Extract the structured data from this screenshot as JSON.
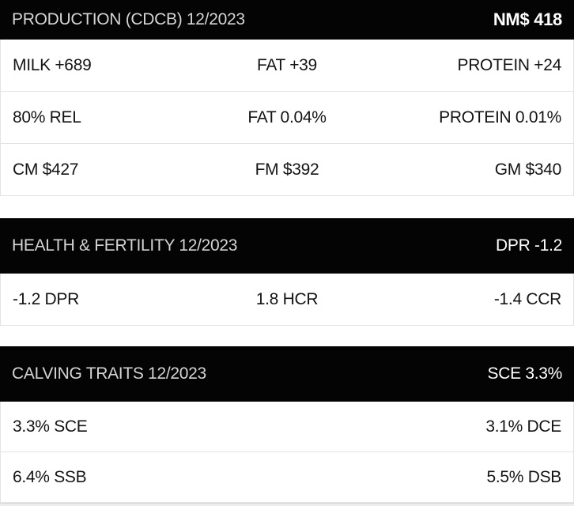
{
  "colors": {
    "header_bg": "#040404",
    "header_title_text": "#d4d4d4",
    "header_value_text": "#ffffff",
    "row_text": "#141414",
    "row_border": "#e3e3e3"
  },
  "sections": [
    {
      "header": {
        "title": "PRODUCTION (CDCB) 12/2023",
        "value": "NM$ 418"
      },
      "rows": [
        {
          "cells": [
            "MILK +689",
            "FAT +39",
            "PROTEIN +24"
          ]
        },
        {
          "cells": [
            "80% REL",
            "FAT 0.04%",
            "PROTEIN 0.01%"
          ]
        },
        {
          "cells": [
            "CM $427",
            "FM $392",
            "GM $340"
          ]
        }
      ]
    },
    {
      "header": {
        "title": "HEALTH & FERTILITY 12/2023",
        "value": "DPR -1.2"
      },
      "rows": [
        {
          "cells": [
            "-1.2 DPR",
            "1.8 HCR",
            "-1.4 CCR"
          ]
        }
      ]
    },
    {
      "header": {
        "title": "CALVING TRAITS 12/2023",
        "value": "SCE 3.3%"
      },
      "rows": [
        {
          "cells": [
            "3.3% SCE",
            "3.1% DCE"
          ]
        },
        {
          "cells": [
            "6.4% SSB",
            "5.5% DSB"
          ]
        }
      ]
    }
  ]
}
